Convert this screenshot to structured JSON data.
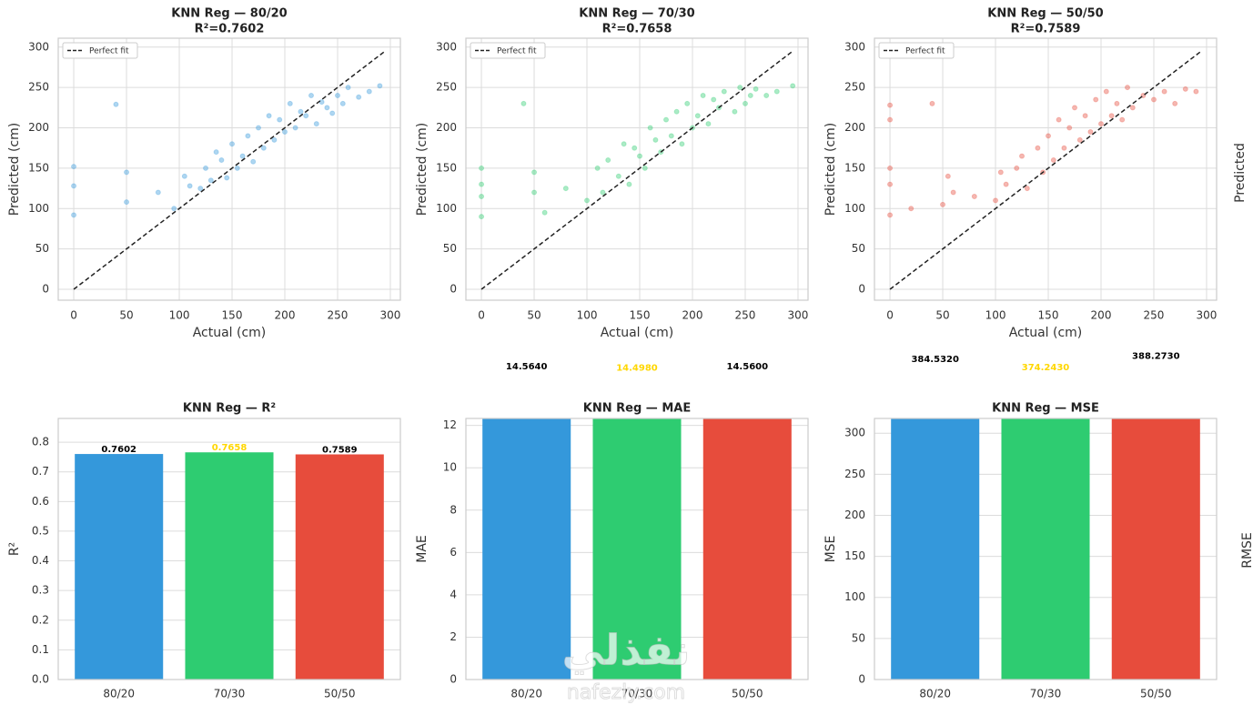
{
  "chart_data": [
    {
      "type": "scatter",
      "title": "KNN Reg — 80/20",
      "subtitle": "R²=0.7602",
      "x_label": "Actual (cm)",
      "y_label": "Predicted (cm)",
      "color": "#3498db",
      "x": [
        0,
        0,
        0,
        40,
        50,
        50,
        80,
        95,
        105,
        110,
        120,
        125,
        130,
        135,
        140,
        145,
        150,
        155,
        160,
        165,
        170,
        175,
        180,
        185,
        190,
        195,
        200,
        205,
        210,
        215,
        220,
        225,
        230,
        235,
        240,
        245,
        250,
        255,
        260,
        270,
        280,
        290
      ],
      "values": [
        92,
        128,
        152,
        229,
        108,
        145,
        120,
        100,
        140,
        128,
        125,
        150,
        135,
        170,
        160,
        138,
        180,
        150,
        165,
        190,
        158,
        200,
        175,
        215,
        185,
        210,
        195,
        230,
        200,
        220,
        215,
        240,
        205,
        232,
        225,
        218,
        240,
        230,
        250,
        238,
        245,
        252
      ],
      "fit_line": {
        "name": "Perfect fit",
        "x": [
          0,
          295
        ],
        "values": [
          0,
          295
        ]
      },
      "xlim": [
        -14.7,
        309.5
      ],
      "ylim": [
        -13.5,
        311
      ],
      "xticks": [
        0,
        50,
        100,
        150,
        200,
        250,
        300
      ],
      "yticks": [
        0,
        50,
        100,
        150,
        200,
        250,
        300
      ],
      "grid": true,
      "legend": "upper left"
    },
    {
      "type": "scatter",
      "title": "KNN Reg — 70/30",
      "subtitle": "R²=0.7658",
      "x_label": "Actual (cm)",
      "y_label": "Predicted (cm)",
      "color": "#2ecc71",
      "x": [
        0,
        0,
        0,
        0,
        40,
        50,
        50,
        60,
        80,
        100,
        110,
        115,
        120,
        130,
        135,
        140,
        145,
        150,
        155,
        160,
        165,
        170,
        175,
        180,
        185,
        190,
        195,
        200,
        205,
        210,
        215,
        220,
        225,
        230,
        240,
        245,
        250,
        255,
        260,
        270,
        280,
        295
      ],
      "values": [
        90,
        115,
        130,
        150,
        230,
        120,
        145,
        95,
        125,
        110,
        150,
        120,
        160,
        140,
        180,
        130,
        175,
        165,
        150,
        200,
        185,
        170,
        210,
        190,
        220,
        180,
        230,
        200,
        215,
        240,
        205,
        235,
        225,
        245,
        220,
        250,
        230,
        240,
        248,
        240,
        245,
        252
      ],
      "fit_line": {
        "name": "Perfect fit",
        "x": [
          0,
          295
        ],
        "values": [
          0,
          295
        ]
      },
      "xlim": [
        -14.7,
        309.5
      ],
      "ylim": [
        -13.5,
        311
      ],
      "xticks": [
        0,
        50,
        100,
        150,
        200,
        250,
        300
      ],
      "yticks": [
        0,
        50,
        100,
        150,
        200,
        250,
        300
      ],
      "grid": true,
      "legend": "upper left"
    },
    {
      "type": "scatter",
      "title": "KNN Reg — 50/50",
      "subtitle": "R²=0.7589",
      "x_label": "Actual (cm)",
      "y_label": "Predicted (cm)",
      "color": "#e74c3c",
      "x": [
        0,
        0,
        0,
        0,
        0,
        20,
        40,
        50,
        55,
        60,
        80,
        100,
        105,
        110,
        120,
        125,
        130,
        140,
        145,
        150,
        155,
        160,
        165,
        170,
        175,
        180,
        185,
        190,
        195,
        200,
        205,
        210,
        215,
        220,
        225,
        230,
        240,
        250,
        260,
        270,
        280,
        290
      ],
      "values": [
        92,
        130,
        150,
        210,
        228,
        100,
        230,
        105,
        140,
        120,
        115,
        110,
        145,
        130,
        150,
        165,
        125,
        175,
        145,
        190,
        160,
        210,
        175,
        200,
        225,
        185,
        215,
        195,
        235,
        205,
        245,
        215,
        230,
        210,
        250,
        225,
        240,
        235,
        245,
        230,
        248,
        245
      ],
      "fit_line": {
        "name": "Perfect fit",
        "x": [
          0,
          295
        ],
        "values": [
          0,
          295
        ]
      },
      "xlim": [
        -14.7,
        309.5
      ],
      "ylim": [
        -13.5,
        311
      ],
      "xticks": [
        0,
        50,
        100,
        150,
        200,
        250,
        300
      ],
      "yticks": [
        0,
        50,
        100,
        150,
        200,
        250,
        300
      ],
      "grid": true,
      "legend": "upper left"
    },
    {
      "type": "bar",
      "title": "KNN Reg — R²",
      "y_label": "R²",
      "categories": [
        "80/20",
        "70/30",
        "50/50"
      ],
      "values": [
        0.7602,
        0.7658,
        0.7589
      ],
      "colors": [
        "#3498db",
        "#2ecc71",
        "#e74c3c"
      ],
      "label_colors": [
        "#000000",
        "#ffd700",
        "#000000"
      ],
      "ylim": [
        0,
        0.88
      ],
      "yticks": [
        {
          "value": 0,
          "label": "0.0"
        },
        0.1,
        0.2,
        0.3,
        0.4,
        0.5,
        0.6,
        0.7,
        0.8
      ],
      "grid": true
    },
    {
      "type": "bar",
      "title": "KNN Reg — MAE",
      "y_label": "MAE",
      "categories": [
        "80/20",
        "70/30",
        "50/50"
      ],
      "values": [
        14.564,
        14.498,
        14.56
      ],
      "value_labels": [
        "14.5640",
        "14.4980",
        "14.5600"
      ],
      "colors": [
        "#3498db",
        "#2ecc71",
        "#e74c3c"
      ],
      "label_colors": [
        "#000000",
        "#ffd700",
        "#000000"
      ],
      "ylim": [
        0,
        12.33
      ],
      "yticks": [
        0,
        2,
        4,
        6,
        8,
        10,
        12
      ],
      "grid": true
    },
    {
      "type": "bar",
      "title": "KNN Reg — MSE",
      "y_label": "MSE",
      "categories": [
        "80/20",
        "70/30",
        "50/50"
      ],
      "values": [
        384.532,
        374.243,
        388.273
      ],
      "value_labels": [
        "384.5320",
        "374.2430",
        "388.2730"
      ],
      "colors": [
        "#3498db",
        "#2ecc71",
        "#e74c3c"
      ],
      "label_colors": [
        "#000000",
        "#ffd700",
        "#000000"
      ],
      "ylim": [
        0,
        318
      ],
      "yticks": [
        0,
        50,
        100,
        150,
        200,
        250,
        300
      ],
      "grid": true
    }
  ],
  "cut_off_labels": [
    "Predicted",
    "RMSE"
  ],
  "watermark": {
    "arabic": "نفذلي",
    "latin": "nafezly.com"
  }
}
